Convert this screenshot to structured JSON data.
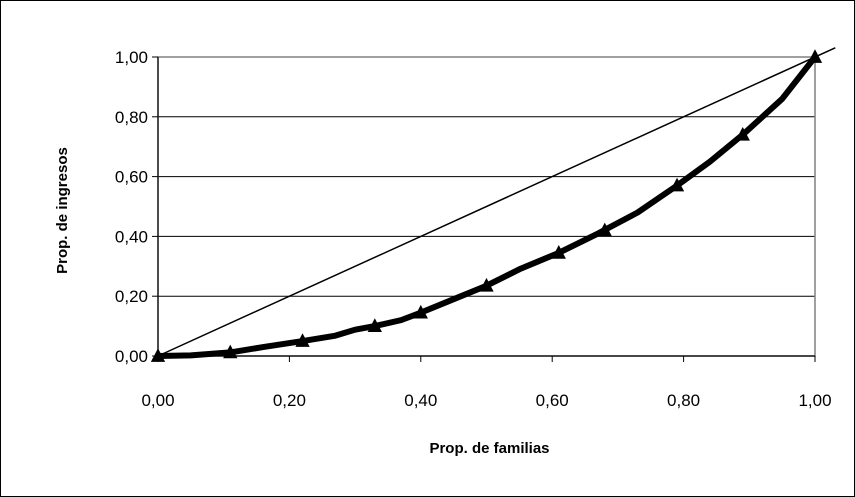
{
  "chart_data": {
    "type": "line",
    "title": "",
    "xlabel": "Prop. de familias",
    "ylabel": "Prop. de ingresos",
    "xlim": [
      0,
      1
    ],
    "ylim": [
      0,
      1
    ],
    "grid": "horizontal",
    "legend": "none",
    "x_tick_labels": [
      "0,00",
      "0,20",
      "0,40",
      "0,60",
      "0,80",
      "1,00"
    ],
    "y_tick_labels": [
      "0,00",
      "0,20",
      "0,40",
      "0,60",
      "0,80",
      "1,00"
    ],
    "x_ticks": [
      0,
      0.2,
      0.4,
      0.6,
      0.8,
      1.0
    ],
    "y_ticks": [
      0,
      0.2,
      0.4,
      0.6,
      0.8,
      1.0
    ],
    "series": [
      {
        "style": "thin-line",
        "color": "#000000",
        "x": [
          0,
          1.03
        ],
        "y": [
          0,
          1.03
        ]
      },
      {
        "style": "thick-line-triangles",
        "color": "#000000",
        "x": [
          0,
          0.05,
          0.11,
          0.16,
          0.22,
          0.27,
          0.3,
          0.33,
          0.37,
          0.4,
          0.45,
          0.5,
          0.55,
          0.61,
          0.67,
          0.73,
          0.79,
          0.84,
          0.89,
          0.95,
          1.0
        ],
        "y": [
          0,
          0.002,
          0.012,
          0.03,
          0.05,
          0.068,
          0.088,
          0.1,
          0.12,
          0.145,
          0.19,
          0.235,
          0.29,
          0.345,
          0.41,
          0.48,
          0.57,
          0.65,
          0.74,
          0.86,
          1.0
        ],
        "marker_x": [
          0,
          0.11,
          0.22,
          0.33,
          0.4,
          0.5,
          0.61,
          0.68,
          0.79,
          0.89,
          1.0
        ],
        "marker_y": [
          0,
          0.012,
          0.05,
          0.1,
          0.145,
          0.235,
          0.345,
          0.42,
          0.57,
          0.74,
          1.0
        ]
      }
    ]
  }
}
